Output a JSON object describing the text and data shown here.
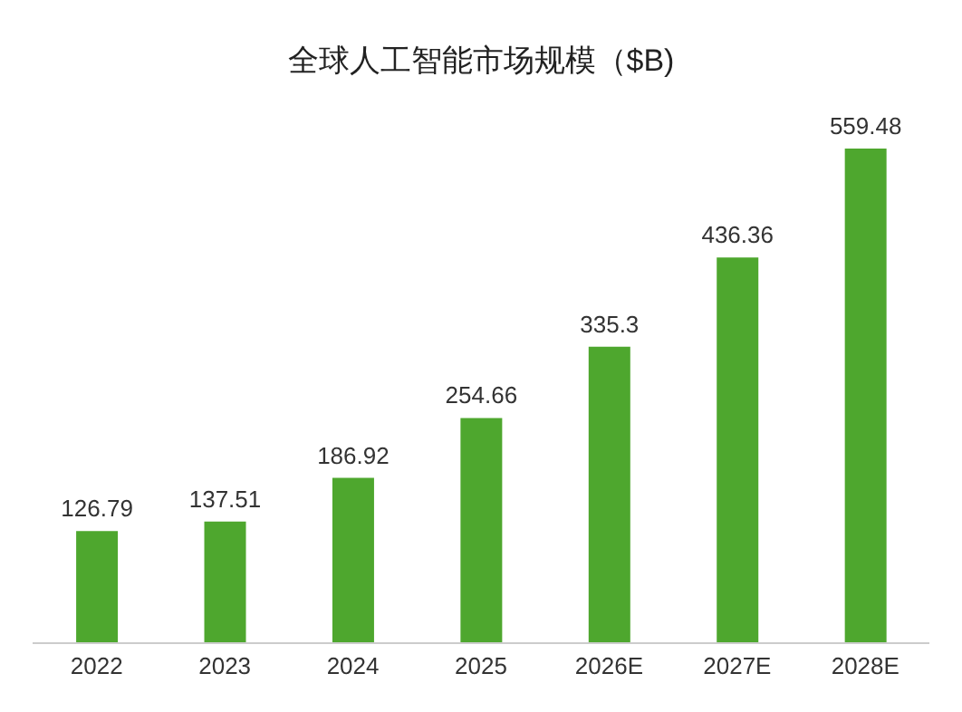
{
  "chart_data": {
    "type": "bar",
    "title": "全球人工智能市场规模（$B)",
    "categories": [
      "2022",
      "2023",
      "2024",
      "2025",
      "2026E",
      "2027E",
      "2028E"
    ],
    "values": [
      126.79,
      137.51,
      186.92,
      254.66,
      335.3,
      436.36,
      559.48
    ],
    "color": "#4ea72e",
    "data_labels": true
  }
}
